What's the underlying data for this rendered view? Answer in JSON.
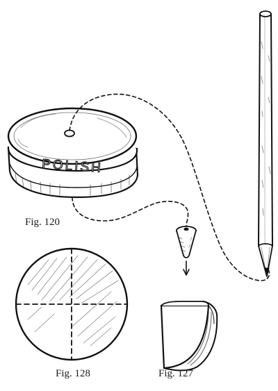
{
  "illustration": {
    "tin_lid_text": "POLISH",
    "figures": [
      {
        "id": "fig-120",
        "caption": "Fig. 120"
      },
      {
        "id": "fig-128",
        "caption": "Fig. 128"
      },
      {
        "id": "fig-127",
        "caption": "Fig. 127"
      }
    ]
  }
}
